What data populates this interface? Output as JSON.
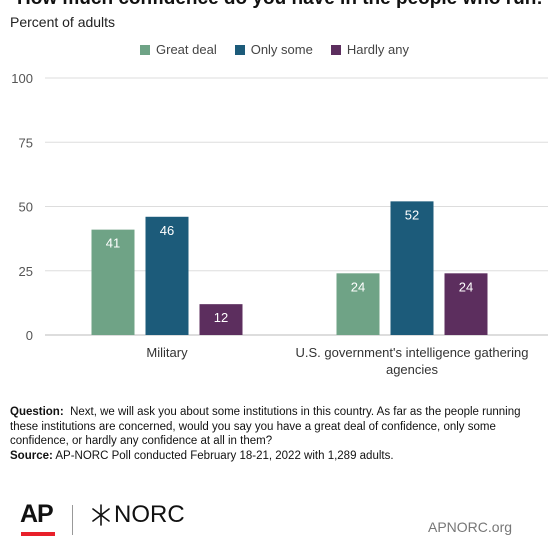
{
  "title": "How much confidence do you have in the people who run:",
  "subtitle": "Percent of adults",
  "legend": [
    {
      "label": "Great deal",
      "color": "#6fa386"
    },
    {
      "label": "Only some",
      "color": "#1c5b7a"
    },
    {
      "label": "Hardly any",
      "color": "#5c2e5e"
    }
  ],
  "chart_data": {
    "type": "bar",
    "title": "How much confidence do you have in the people who run:",
    "subtitle": "Percent of adults",
    "categories": [
      "Military",
      "U.S. government's intelligence gathering agencies"
    ],
    "category_lines": [
      [
        "Military"
      ],
      [
        "U.S. government's intelligence gathering",
        "agencies"
      ]
    ],
    "series": [
      {
        "name": "Great deal",
        "color": "#6fa386",
        "values": [
          41,
          24
        ]
      },
      {
        "name": "Only some",
        "color": "#1c5b7a",
        "values": [
          46,
          52
        ]
      },
      {
        "name": "Hardly any",
        "color": "#5c2e5e",
        "values": [
          12,
          24
        ]
      }
    ],
    "yticks": [
      0,
      25,
      50,
      75,
      100
    ],
    "ylim": [
      0,
      100
    ],
    "grid": true,
    "legend_position": "top"
  },
  "footer": {
    "question_label": "Question:",
    "question_text": "Next, we will ask you about some institutions in this country. As far as the people running these institutions are concerned, would you say you have a great deal of confidence, only some confidence, or hardly any confidence at all in them?",
    "source_label": "Source:",
    "source_text": "AP-NORC Poll conducted February 18-21, 2022 with 1,289 adults."
  },
  "logos": {
    "ap": "AP",
    "norc": "NORC",
    "site": "APNORC.org"
  }
}
